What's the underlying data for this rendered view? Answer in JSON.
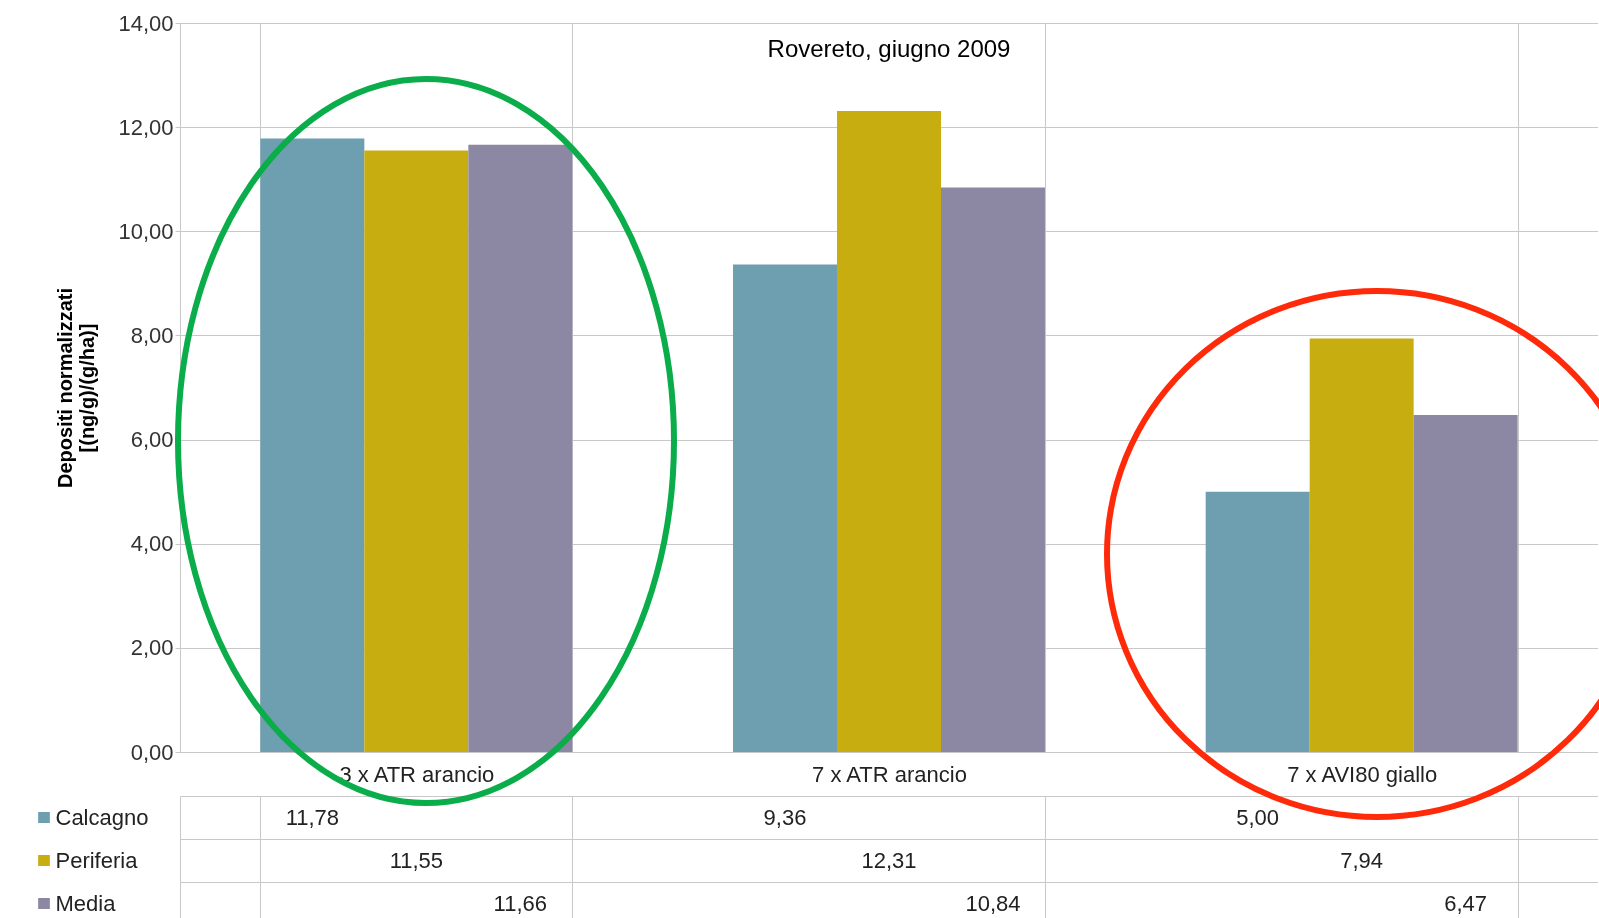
{
  "chart_data": {
    "type": "bar",
    "title": "Rovereto, giugno  2009",
    "ylabel": "Depositi normalizzati\n[(ng/g)/(g/ha)]",
    "categories": [
      "3 x ATR arancio",
      "7 x ATR arancio",
      "7 x AVI80 giallo"
    ],
    "series": [
      {
        "name": "Calcagno",
        "color": "#6d9fb0",
        "values": [
          11.78,
          9.36,
          5.0
        ],
        "value_labels": [
          "11,78",
          "9,36",
          "5,00"
        ]
      },
      {
        "name": "Periferia",
        "color": "#c8ad10",
        "values": [
          11.55,
          12.31,
          7.94
        ],
        "value_labels": [
          "11,55",
          "12,31",
          "7,94"
        ]
      },
      {
        "name": "Media",
        "color": "#8c88a3",
        "values": [
          11.66,
          10.84,
          6.47
        ],
        "value_labels": [
          "11,66",
          "10,84",
          "6,47"
        ]
      }
    ],
    "ylim": [
      0,
      14
    ],
    "yticks": [
      {
        "value": 0,
        "label": "0,00"
      },
      {
        "value": 2,
        "label": "2,00"
      },
      {
        "value": 4,
        "label": "4,00"
      },
      {
        "value": 6,
        "label": "6,00"
      },
      {
        "value": 8,
        "label": "8,00"
      },
      {
        "value": 10,
        "label": "10,00"
      },
      {
        "value": 12,
        "label": "12,00"
      },
      {
        "value": 14,
        "label": "14,00"
      }
    ],
    "grid": "y",
    "legend": "bottom"
  }
}
